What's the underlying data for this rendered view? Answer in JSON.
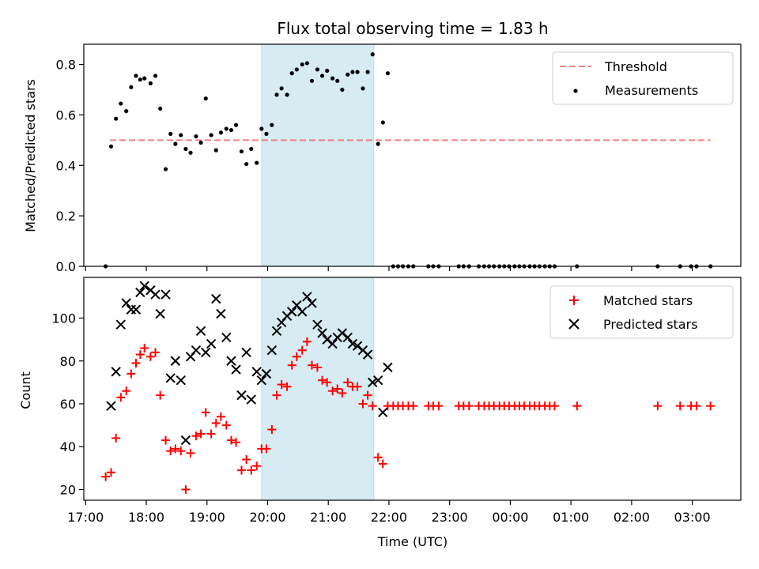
{
  "chart_data": [
    {
      "type": "scatter",
      "title": "Flux total observing time = 1.83 h",
      "ylabel": "Matched/Predicted stars",
      "ylim": [
        0,
        0.88
      ],
      "yticks": [
        0.0,
        0.2,
        0.4,
        0.6,
        0.8
      ],
      "ytick_labels": [
        "0.0",
        "0.2",
        "0.4",
        "0.6",
        "0.8"
      ],
      "xlim_hours": [
        16.97,
        27.8
      ],
      "shaded_region_hours": [
        19.9,
        21.75
      ],
      "legend": {
        "placement": "top-right",
        "entries": [
          "Threshold",
          "Measurements"
        ]
      },
      "threshold": {
        "name": "Threshold",
        "value": 0.5,
        "x_range_hours": [
          17.4,
          27.3
        ],
        "color": "#f08080"
      },
      "series": [
        {
          "name": "Measurements",
          "color": "#000000",
          "points": [
            [
              17.33,
              0.0
            ],
            [
              17.42,
              0.475
            ],
            [
              17.5,
              0.585
            ],
            [
              17.58,
              0.645
            ],
            [
              17.67,
              0.615
            ],
            [
              17.75,
              0.71
            ],
            [
              17.83,
              0.755
            ],
            [
              17.9,
              0.74
            ],
            [
              17.97,
              0.745
            ],
            [
              18.07,
              0.725
            ],
            [
              18.15,
              0.755
            ],
            [
              18.23,
              0.625
            ],
            [
              18.32,
              0.385
            ],
            [
              18.4,
              0.525
            ],
            [
              18.48,
              0.485
            ],
            [
              18.57,
              0.52
            ],
            [
              18.65,
              0.465
            ],
            [
              18.73,
              0.45
            ],
            [
              18.82,
              0.515
            ],
            [
              18.9,
              0.49
            ],
            [
              18.98,
              0.665
            ],
            [
              19.07,
              0.52
            ],
            [
              19.15,
              0.46
            ],
            [
              19.23,
              0.53
            ],
            [
              19.32,
              0.545
            ],
            [
              19.4,
              0.54
            ],
            [
              19.48,
              0.56
            ],
            [
              19.57,
              0.455
            ],
            [
              19.65,
              0.405
            ],
            [
              19.73,
              0.465
            ],
            [
              19.82,
              0.41
            ],
            [
              19.9,
              0.545
            ],
            [
              19.98,
              0.525
            ],
            [
              20.07,
              0.56
            ],
            [
              20.15,
              0.68
            ],
            [
              20.23,
              0.705
            ],
            [
              20.32,
              0.68
            ],
            [
              20.4,
              0.765
            ],
            [
              20.48,
              0.78
            ],
            [
              20.57,
              0.8
            ],
            [
              20.65,
              0.805
            ],
            [
              20.73,
              0.735
            ],
            [
              20.82,
              0.78
            ],
            [
              20.9,
              0.755
            ],
            [
              20.98,
              0.775
            ],
            [
              21.07,
              0.745
            ],
            [
              21.15,
              0.735
            ],
            [
              21.23,
              0.7
            ],
            [
              21.32,
              0.76
            ],
            [
              21.4,
              0.77
            ],
            [
              21.48,
              0.77
            ],
            [
              21.57,
              0.705
            ],
            [
              21.65,
              0.77
            ],
            [
              21.73,
              0.84
            ],
            [
              21.82,
              0.485
            ],
            [
              21.9,
              0.57
            ],
            [
              21.98,
              0.765
            ],
            [
              22.07,
              0.0
            ],
            [
              22.15,
              0.0
            ],
            [
              22.23,
              0.0
            ],
            [
              22.32,
              0.0
            ],
            [
              22.4,
              0.0
            ],
            [
              22.65,
              0.0
            ],
            [
              22.73,
              0.0
            ],
            [
              22.82,
              0.0
            ],
            [
              23.15,
              0.0
            ],
            [
              23.23,
              0.0
            ],
            [
              23.32,
              0.0
            ],
            [
              23.48,
              0.0
            ],
            [
              23.57,
              0.0
            ],
            [
              23.65,
              0.0
            ],
            [
              23.73,
              0.0
            ],
            [
              23.82,
              0.0
            ],
            [
              23.9,
              0.0
            ],
            [
              23.98,
              0.0
            ],
            [
              24.07,
              0.0
            ],
            [
              24.15,
              0.0
            ],
            [
              24.23,
              0.0
            ],
            [
              24.32,
              0.0
            ],
            [
              24.4,
              0.0
            ],
            [
              24.48,
              0.0
            ],
            [
              24.57,
              0.0
            ],
            [
              24.65,
              0.0
            ],
            [
              24.73,
              0.0
            ],
            [
              25.1,
              0.0
            ],
            [
              26.43,
              0.0
            ],
            [
              26.8,
              0.0
            ],
            [
              26.98,
              0.0
            ],
            [
              27.07,
              0.0
            ],
            [
              27.3,
              0.0
            ]
          ]
        }
      ]
    },
    {
      "type": "scatter",
      "xlabel": "Time (UTC)",
      "ylabel": "Count",
      "ylim": [
        15,
        119
      ],
      "yticks": [
        20,
        40,
        60,
        80,
        100
      ],
      "ytick_labels": [
        "20",
        "40",
        "60",
        "80",
        "100"
      ],
      "xlim_hours": [
        16.97,
        27.8
      ],
      "xticks_hours": [
        17,
        18,
        19,
        20,
        21,
        22,
        23,
        24,
        25,
        26,
        27
      ],
      "xtick_labels": [
        "17:00",
        "18:00",
        "19:00",
        "20:00",
        "21:00",
        "22:00",
        "23:00",
        "00:00",
        "01:00",
        "02:00",
        "03:00"
      ],
      "shaded_region_hours": [
        19.9,
        21.75
      ],
      "legend": {
        "placement": "top-right",
        "entries": [
          "Matched stars",
          "Predicted stars"
        ]
      },
      "series": [
        {
          "name": "Matched stars",
          "marker": "plus",
          "color": "#ff0000",
          "points": [
            [
              17.33,
              26
            ],
            [
              17.42,
              28
            ],
            [
              17.5,
              44
            ],
            [
              17.58,
              63
            ],
            [
              17.67,
              66
            ],
            [
              17.75,
              74
            ],
            [
              17.83,
              79
            ],
            [
              17.9,
              83
            ],
            [
              17.97,
              86
            ],
            [
              18.07,
              82
            ],
            [
              18.15,
              84
            ],
            [
              18.23,
              64
            ],
            [
              18.32,
              43
            ],
            [
              18.4,
              38
            ],
            [
              18.48,
              39
            ],
            [
              18.57,
              38
            ],
            [
              18.65,
              20
            ],
            [
              18.73,
              37
            ],
            [
              18.82,
              45
            ],
            [
              18.9,
              46
            ],
            [
              18.98,
              56
            ],
            [
              19.07,
              46
            ],
            [
              19.15,
              51
            ],
            [
              19.23,
              54
            ],
            [
              19.32,
              50
            ],
            [
              19.4,
              43
            ],
            [
              19.48,
              42
            ],
            [
              19.57,
              29
            ],
            [
              19.65,
              34
            ],
            [
              19.73,
              29
            ],
            [
              19.82,
              31
            ],
            [
              19.9,
              39
            ],
            [
              19.98,
              39
            ],
            [
              20.07,
              48
            ],
            [
              20.15,
              64
            ],
            [
              20.23,
              69
            ],
            [
              20.32,
              68
            ],
            [
              20.4,
              78
            ],
            [
              20.48,
              82
            ],
            [
              20.57,
              85
            ],
            [
              20.65,
              89
            ],
            [
              20.73,
              78
            ],
            [
              20.82,
              77
            ],
            [
              20.9,
              71
            ],
            [
              20.98,
              70
            ],
            [
              21.07,
              66
            ],
            [
              21.15,
              67
            ],
            [
              21.23,
              65
            ],
            [
              21.32,
              70
            ],
            [
              21.4,
              68
            ],
            [
              21.48,
              68
            ],
            [
              21.57,
              60
            ],
            [
              21.65,
              64
            ],
            [
              21.73,
              59
            ],
            [
              21.82,
              35
            ],
            [
              21.9,
              32
            ],
            [
              21.98,
              59
            ],
            [
              22.07,
              59
            ],
            [
              22.15,
              59
            ],
            [
              22.23,
              59
            ],
            [
              22.32,
              59
            ],
            [
              22.4,
              59
            ],
            [
              22.65,
              59
            ],
            [
              22.73,
              59
            ],
            [
              22.82,
              59
            ],
            [
              23.15,
              59
            ],
            [
              23.23,
              59
            ],
            [
              23.32,
              59
            ],
            [
              23.48,
              59
            ],
            [
              23.57,
              59
            ],
            [
              23.65,
              59
            ],
            [
              23.73,
              59
            ],
            [
              23.82,
              59
            ],
            [
              23.9,
              59
            ],
            [
              23.98,
              59
            ],
            [
              24.07,
              59
            ],
            [
              24.15,
              59
            ],
            [
              24.23,
              59
            ],
            [
              24.32,
              59
            ],
            [
              24.4,
              59
            ],
            [
              24.48,
              59
            ],
            [
              24.57,
              59
            ],
            [
              24.65,
              59
            ],
            [
              24.73,
              59
            ],
            [
              25.1,
              59
            ],
            [
              26.43,
              59
            ],
            [
              26.8,
              59
            ],
            [
              26.98,
              59
            ],
            [
              27.07,
              59
            ],
            [
              27.3,
              59
            ]
          ]
        },
        {
          "name": "Predicted stars",
          "marker": "x",
          "color": "#000000",
          "points": [
            [
              17.42,
              59
            ],
            [
              17.5,
              75
            ],
            [
              17.58,
              97
            ],
            [
              17.67,
              107
            ],
            [
              17.75,
              104
            ],
            [
              17.83,
              104
            ],
            [
              17.9,
              112
            ],
            [
              17.97,
              115
            ],
            [
              18.07,
              113
            ],
            [
              18.15,
              111
            ],
            [
              18.23,
              102
            ],
            [
              18.32,
              111
            ],
            [
              18.4,
              72
            ],
            [
              18.48,
              80
            ],
            [
              18.57,
              71
            ],
            [
              18.65,
              43
            ],
            [
              18.73,
              82
            ],
            [
              18.82,
              85
            ],
            [
              18.9,
              94
            ],
            [
              18.98,
              84
            ],
            [
              19.07,
              88
            ],
            [
              19.15,
              109
            ],
            [
              19.23,
              102
            ],
            [
              19.32,
              91
            ],
            [
              19.4,
              80
            ],
            [
              19.48,
              76
            ],
            [
              19.57,
              64
            ],
            [
              19.65,
              84
            ],
            [
              19.73,
              62
            ],
            [
              19.82,
              75
            ],
            [
              19.9,
              71
            ],
            [
              19.98,
              74
            ],
            [
              20.07,
              85
            ],
            [
              20.15,
              94
            ],
            [
              20.23,
              98
            ],
            [
              20.32,
              101
            ],
            [
              20.4,
              103
            ],
            [
              20.48,
              106
            ],
            [
              20.57,
              103
            ],
            [
              20.65,
              110
            ],
            [
              20.73,
              107
            ],
            [
              20.82,
              97
            ],
            [
              20.9,
              93
            ],
            [
              20.98,
              90
            ],
            [
              21.07,
              88
            ],
            [
              21.15,
              91
            ],
            [
              21.23,
              93
            ],
            [
              21.32,
              91
            ],
            [
              21.4,
              88
            ],
            [
              21.48,
              87
            ],
            [
              21.57,
              85
            ],
            [
              21.65,
              83
            ],
            [
              21.73,
              70
            ],
            [
              21.82,
              71
            ],
            [
              21.9,
              56
            ],
            [
              21.98,
              77
            ]
          ]
        }
      ]
    }
  ]
}
